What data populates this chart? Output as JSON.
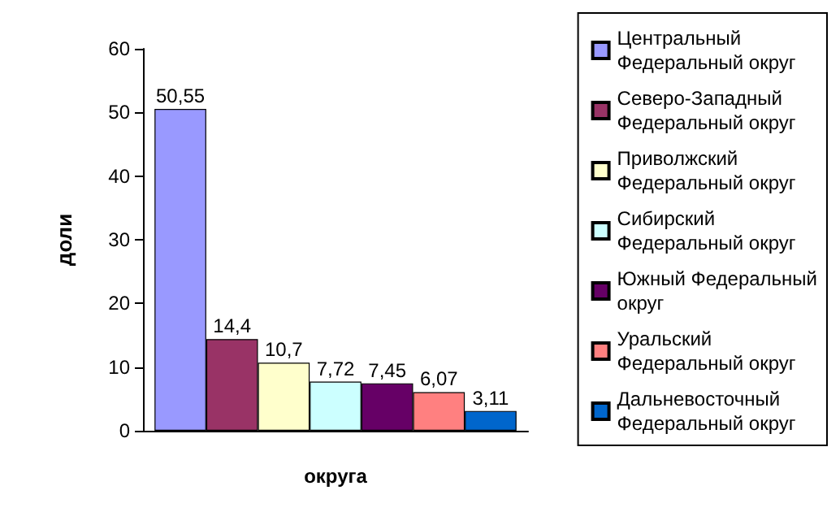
{
  "chart_data": {
    "type": "bar",
    "xlabel": "округа",
    "ylabel": "доли",
    "categories": [
      null
    ],
    "ylim": [
      0,
      60
    ],
    "yticks": [
      0,
      10,
      20,
      30,
      40,
      50,
      60
    ],
    "grid": false,
    "legend": "right",
    "series": [
      {
        "name": "Центральный Федеральный округ",
        "color": "#9999ff",
        "values": [
          50.55
        ],
        "value_labels": [
          "50,55"
        ]
      },
      {
        "name": "Северо-Западный Федеральный округ",
        "color": "#993366",
        "values": [
          14.4
        ],
        "value_labels": [
          "14,4"
        ]
      },
      {
        "name": "Приволжский Федеральный округ",
        "color": "#ffffcc",
        "values": [
          10.7
        ],
        "value_labels": [
          "10,7"
        ]
      },
      {
        "name": "Сибирский Федеральный округ",
        "color": "#ccffff",
        "values": [
          7.72
        ],
        "value_labels": [
          "7,72"
        ]
      },
      {
        "name": "Южный Федеральный округ",
        "color": "#660066",
        "values": [
          7.45
        ],
        "value_labels": [
          "7,45"
        ]
      },
      {
        "name": "Уральский Федеральный округ",
        "color": "#ff8080",
        "values": [
          6.07
        ],
        "value_labels": [
          "6,07"
        ]
      },
      {
        "name": "Дальневосточный Федеральный округ",
        "color": "#0066cc",
        "values": [
          3.11
        ],
        "value_labels": [
          "3,11"
        ]
      }
    ]
  }
}
